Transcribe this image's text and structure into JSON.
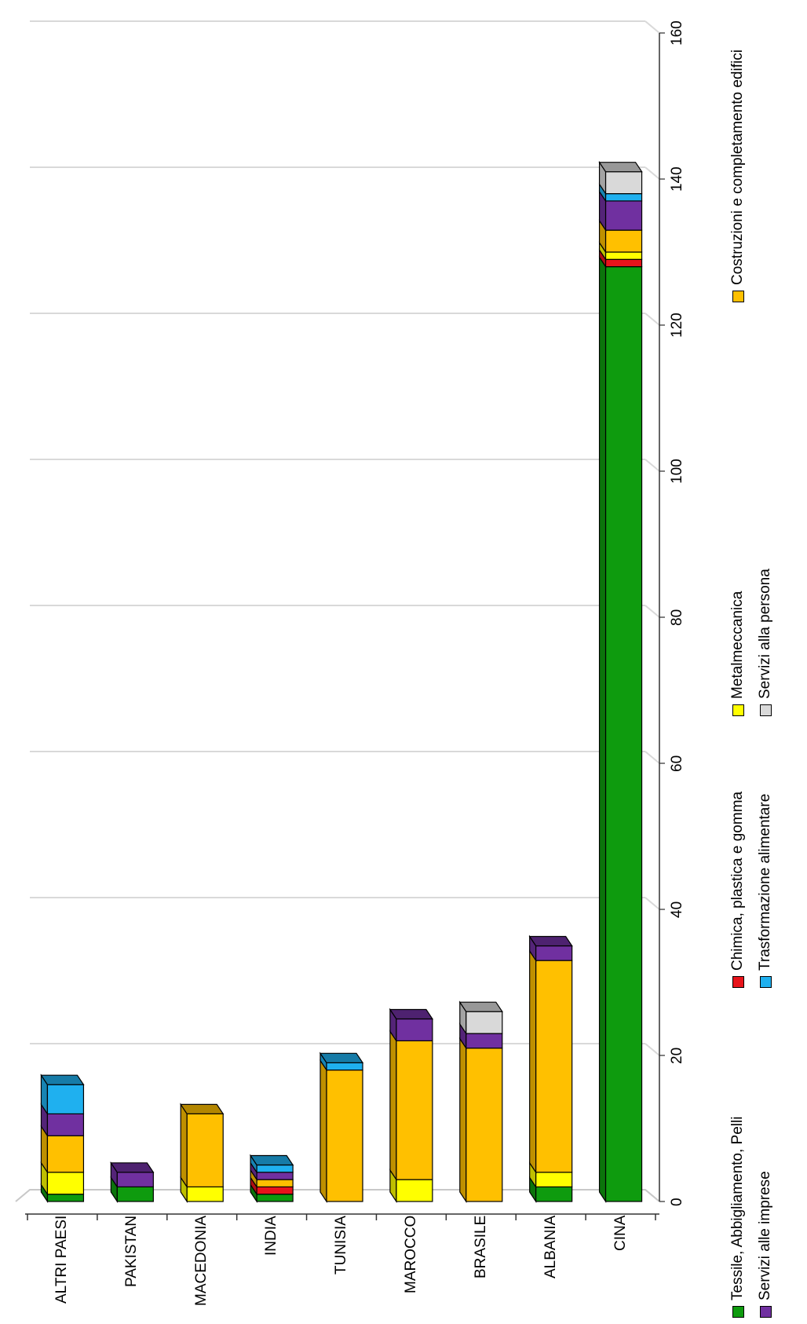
{
  "chart_data": {
    "type": "bar",
    "orientation": "stacked-3d, rotated 90deg (values increase upward on page)",
    "title": "",
    "xlabel": "",
    "ylabel": "",
    "ylim": [
      0,
      160
    ],
    "yticks": [
      0,
      20,
      40,
      60,
      80,
      100,
      120,
      140,
      160
    ],
    "grid": true,
    "legend_position": "bottom",
    "categories": [
      "ALTRI PAESI",
      "PAKISTAN",
      "MACEDONIA",
      "INDIA",
      "TUNISIA",
      "MAROCCO",
      "BRASILE",
      "ALBANIA",
      "CINA"
    ],
    "series": [
      {
        "name": "Tessile, Abbigliamento, Pelli",
        "color": "#0e9b0e",
        "values": [
          1,
          2,
          0,
          1,
          0,
          0,
          0,
          2,
          128
        ]
      },
      {
        "name": "Chimica, plastica e gomma",
        "color": "#e8141b",
        "values": [
          0,
          0,
          0,
          1,
          0,
          0,
          0,
          0,
          1
        ]
      },
      {
        "name": "Metalmeccanica",
        "color": "#ffff00",
        "values": [
          3,
          0,
          2,
          0,
          0,
          3,
          0,
          2,
          1
        ]
      },
      {
        "name": "Costruzioni e completamento edifici",
        "color": "#ffc000",
        "values": [
          5,
          0,
          10,
          1,
          18,
          19,
          21,
          29,
          3
        ]
      },
      {
        "name": "Servizi alle imprese",
        "color": "#7030a0",
        "values": [
          3,
          2,
          0,
          1,
          0,
          3,
          2,
          2,
          4
        ]
      },
      {
        "name": "Trasformazione alimentare",
        "color": "#1fb0ef",
        "values": [
          4,
          0,
          0,
          1,
          1,
          0,
          0,
          0,
          1
        ]
      },
      {
        "name": "Servizi alla persona",
        "color": "#d9d9d9",
        "values": [
          0,
          0,
          0,
          0,
          0,
          0,
          3,
          0,
          3
        ]
      }
    ]
  }
}
